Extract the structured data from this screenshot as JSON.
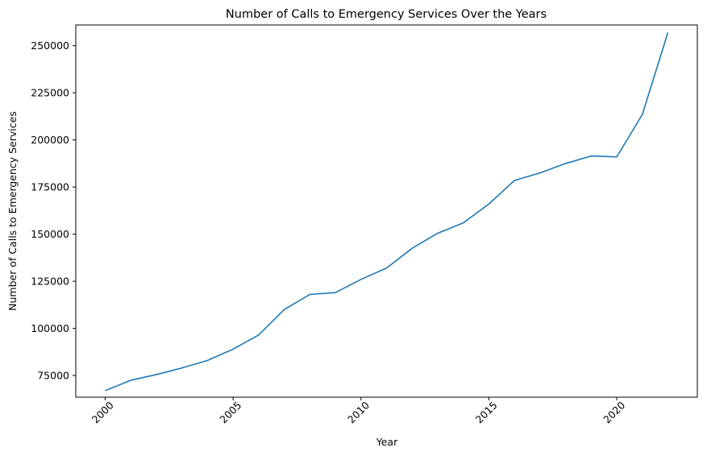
{
  "chart_data": {
    "type": "line",
    "title": "Number of Calls to Emergency Services Over the Years",
    "xlabel": "Year",
    "ylabel": "Number of Calls to Emergency Services",
    "xlim": [
      1998.85,
      2023.15
    ],
    "ylim": [
      63500,
      261000
    ],
    "x_ticks": [
      2000,
      2005,
      2010,
      2015,
      2020
    ],
    "y_ticks": [
      75000,
      100000,
      125000,
      150000,
      175000,
      200000,
      225000,
      250000
    ],
    "x_tick_rotation_deg": 45,
    "grid": false,
    "legend": "none",
    "line_color": "#1f77b4",
    "series": [
      {
        "x": [
          2000,
          2001,
          2002,
          2003,
          2004,
          2005,
          2006,
          2007,
          2008,
          2009,
          2010,
          2011,
          2012,
          2013,
          2014,
          2015,
          2016,
          2017,
          2018,
          2019,
          2020,
          2021,
          2022
        ],
        "values": [
          67000,
          72500,
          75500,
          79000,
          83000,
          89000,
          96500,
          110000,
          118000,
          119000,
          126000,
          132000,
          142500,
          150500,
          156000,
          166000,
          178500,
          182500,
          187500,
          191500,
          191000,
          213500,
          257000
        ]
      }
    ]
  }
}
